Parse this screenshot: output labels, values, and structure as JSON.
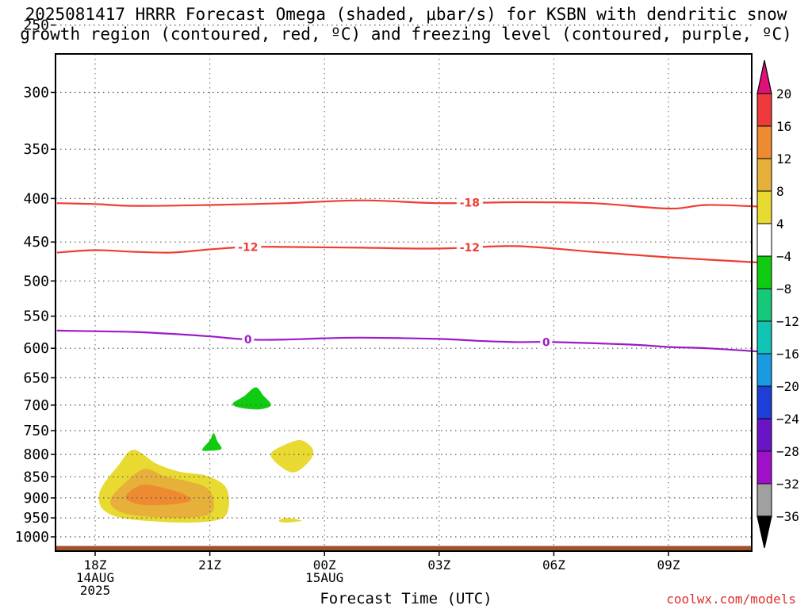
{
  "title": {
    "line1": "2025081417 HRRR Forecast Omega (shaded, μbar/s) for KSBN with dendritic snow",
    "line2": "growth region (contoured, red, ºC) and freezing level (contoured, purple, ºC)"
  },
  "credit": "coolwx.com/models",
  "chart_data": {
    "type": "time-height cross section",
    "xlabel": "Forecast Time (UTC)",
    "ylabel": "",
    "x_ticks": [
      {
        "hour": 0,
        "lines": [
          "18Z",
          "14AUG",
          "2025"
        ]
      },
      {
        "hour": 3,
        "lines": [
          "21Z"
        ]
      },
      {
        "hour": 6,
        "lines": [
          "00Z",
          "15AUG"
        ]
      },
      {
        "hour": 9,
        "lines": [
          "03Z"
        ]
      },
      {
        "hour": 12,
        "lines": [
          "06Z"
        ]
      },
      {
        "hour": 15,
        "lines": [
          "09Z"
        ]
      }
    ],
    "xlim_hours": [
      -1,
      17.5
    ],
    "y_ticks": [
      250,
      300,
      350,
      400,
      450,
      500,
      550,
      600,
      650,
      700,
      750,
      800,
      850,
      900,
      950,
      1000
    ],
    "ylim_hPa": [
      1000,
      200
    ],
    "y_scale": "log",
    "grid": true,
    "ground_color": "#a0522d",
    "contours": [
      {
        "name": "-18",
        "color": "#f03c32",
        "label_hours": [
          9.8
        ],
        "points": [
          [
            -1,
            405
          ],
          [
            0,
            406
          ],
          [
            1,
            408
          ],
          [
            3,
            407
          ],
          [
            5,
            405
          ],
          [
            7,
            402
          ],
          [
            9,
            405
          ],
          [
            11,
            404
          ],
          [
            13,
            405
          ],
          [
            15,
            411
          ],
          [
            16,
            407
          ],
          [
            17.5,
            409
          ]
        ]
      },
      {
        "name": "-12",
        "color": "#f03c32",
        "label_hours": [
          4.0,
          9.8
        ],
        "points": [
          [
            -1,
            463
          ],
          [
            0,
            460
          ],
          [
            1,
            462
          ],
          [
            2,
            463
          ],
          [
            3,
            459
          ],
          [
            4,
            456
          ],
          [
            5,
            456
          ],
          [
            7,
            457
          ],
          [
            9,
            458
          ],
          [
            11,
            455
          ],
          [
            13,
            462
          ],
          [
            15,
            469
          ],
          [
            17.5,
            476
          ]
        ]
      },
      {
        "name": "0",
        "color": "#9b1bc8",
        "label_hours": [
          4.0,
          11.8
        ],
        "points": [
          [
            -1,
            572
          ],
          [
            0,
            573
          ],
          [
            1,
            574
          ],
          [
            2,
            577
          ],
          [
            3,
            581
          ],
          [
            4,
            586
          ],
          [
            5,
            586
          ],
          [
            6,
            584
          ],
          [
            7,
            583
          ],
          [
            9,
            585
          ],
          [
            10,
            588
          ],
          [
            11,
            590
          ],
          [
            12,
            590
          ],
          [
            14,
            594
          ],
          [
            15,
            598
          ],
          [
            16,
            600
          ],
          [
            17.5,
            606
          ]
        ]
      }
    ],
    "omega_regions": [
      {
        "value": 6,
        "color": "#e8da30",
        "points": [
          [
            0.1,
            900
          ],
          [
            0.2,
            870
          ],
          [
            0.6,
            825
          ],
          [
            1.0,
            790
          ],
          [
            1.6,
            820
          ],
          [
            2.2,
            838
          ],
          [
            2.9,
            847
          ],
          [
            3.4,
            872
          ],
          [
            3.5,
            918
          ],
          [
            3.3,
            952
          ],
          [
            2.5,
            962
          ],
          [
            1.4,
            958
          ],
          [
            0.6,
            948
          ],
          [
            0.2,
            928
          ]
        ]
      },
      {
        "value": 10,
        "color": "#e6b03a",
        "points": [
          [
            0.4,
            905
          ],
          [
            0.8,
            862
          ],
          [
            1.3,
            832
          ],
          [
            1.8,
            848
          ],
          [
            2.4,
            860
          ],
          [
            2.9,
            875
          ],
          [
            3.1,
            905
          ],
          [
            3.0,
            940
          ],
          [
            2.3,
            950
          ],
          [
            1.2,
            945
          ],
          [
            0.6,
            932
          ]
        ]
      },
      {
        "value": 14,
        "color": "#ee8a30",
        "points": [
          [
            0.8,
            898
          ],
          [
            1.0,
            878
          ],
          [
            1.3,
            868
          ],
          [
            1.8,
            876
          ],
          [
            2.3,
            890
          ],
          [
            2.5,
            906
          ],
          [
            2.1,
            915
          ],
          [
            1.4,
            918
          ],
          [
            1.0,
            912
          ]
        ]
      },
      {
        "value": 6,
        "color": "#e8da30",
        "points": [
          [
            4.6,
            798
          ],
          [
            5.0,
            778
          ],
          [
            5.4,
            770
          ],
          [
            5.7,
            790
          ],
          [
            5.6,
            815
          ],
          [
            5.2,
            840
          ],
          [
            4.8,
            823
          ]
        ]
      },
      {
        "value": 6,
        "color": "#e8da30",
        "points": [
          [
            4.8,
            958
          ],
          [
            5.0,
            950
          ],
          [
            5.4,
            957
          ],
          [
            5.0,
            962
          ]
        ]
      },
      {
        "value": -6,
        "color": "#10cc10",
        "points": [
          [
            3.6,
            697
          ],
          [
            3.9,
            683
          ],
          [
            4.2,
            667
          ],
          [
            4.4,
            682
          ],
          [
            4.6,
            700
          ],
          [
            4.3,
            708
          ],
          [
            3.8,
            705
          ]
        ]
      },
      {
        "value": -6,
        "color": "#10cc10",
        "points": [
          [
            2.8,
            790
          ],
          [
            3.0,
            770
          ],
          [
            3.1,
            755
          ],
          [
            3.2,
            772
          ],
          [
            3.3,
            788
          ],
          [
            3.0,
            792
          ]
        ]
      }
    ],
    "colorbar": {
      "labels": [
        "20",
        "16",
        "12",
        "8",
        "4",
        "−4",
        "−8",
        "−12",
        "−16",
        "−20",
        "−24",
        "−28",
        "−32",
        "−36"
      ],
      "colors": [
        "#ed3a3a",
        "#ee8a30",
        "#e6b03a",
        "#e8da30",
        "#ffffff",
        "#10cc10",
        "#16c87a",
        "#12c4b4",
        "#1a9ae0",
        "#1e3ed8",
        "#6a14c8",
        "#a010c8",
        "#a0a0a0"
      ],
      "top_arrow_color": "#e0107a",
      "bottom_arrow_color": "#000000"
    }
  }
}
